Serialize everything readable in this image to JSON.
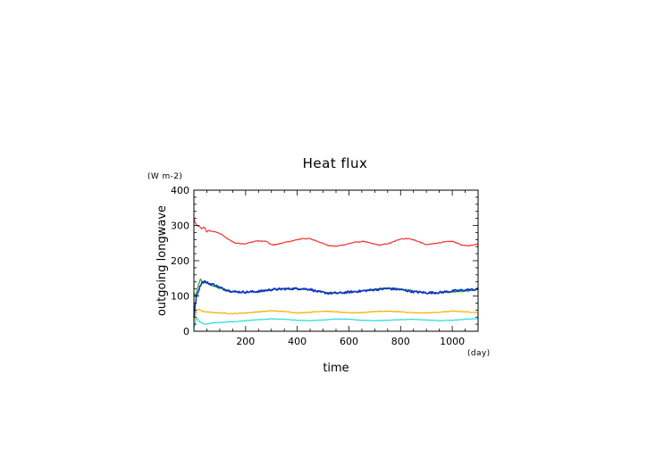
{
  "chart_data": {
    "type": "line",
    "title": "Heat flux",
    "xlabel": "time",
    "ylabel": "outgoing longwave",
    "x_unit": "(day)",
    "y_unit": "(W m-2)",
    "xlim": [
      0,
      1100
    ],
    "ylim": [
      0,
      400
    ],
    "x_ticks": [
      200,
      400,
      600,
      800,
      1000
    ],
    "y_ticks": [
      0,
      100,
      200,
      300,
      400
    ],
    "x_tick_labels": [
      "200",
      "400",
      "600",
      "800",
      "1000"
    ],
    "y_tick_labels": [
      "0",
      "100",
      "200",
      "300",
      "400"
    ],
    "grid": false,
    "legend": "none",
    "series": [
      {
        "color": "#ee3333",
        "x": [
          0,
          5,
          10,
          20,
          30,
          40,
          50,
          60,
          80,
          100,
          130,
          160,
          200,
          240,
          280,
          300,
          320,
          340,
          380,
          420,
          450,
          480,
          520,
          550,
          580,
          620,
          660,
          680,
          720,
          760,
          800,
          830,
          860,
          900,
          940,
          980,
          1000,
          1020,
          1040,
          1070,
          1100
        ],
        "y": [
          320,
          308,
          300,
          298,
          290,
          296,
          282,
          285,
          282,
          278,
          262,
          250,
          248,
          256,
          255,
          245,
          246,
          250,
          256,
          263,
          262,
          255,
          243,
          241,
          245,
          252,
          255,
          250,
          244,
          250,
          262,
          263,
          257,
          245,
          250,
          254,
          255,
          250,
          243,
          243,
          248
        ]
      },
      {
        "color": "#22aa22",
        "x": [
          0,
          5,
          15,
          25,
          35,
          45,
          60,
          80,
          100,
          150,
          200,
          250,
          300,
          350,
          400,
          450,
          500,
          550,
          600,
          650,
          700,
          750,
          800,
          850,
          900,
          950,
          1000,
          1050,
          1100
        ],
        "y": [
          110,
          100,
          125,
          148,
          135,
          140,
          132,
          128,
          122,
          112,
          110,
          112,
          118,
          120,
          122,
          118,
          110,
          108,
          110,
          114,
          118,
          122,
          120,
          114,
          108,
          108,
          112,
          114,
          118
        ]
      },
      {
        "color": "#1133cc",
        "x": [
          0,
          5,
          10,
          20,
          30,
          40,
          50,
          60,
          80,
          100,
          130,
          160,
          200,
          250,
          300,
          350,
          400,
          450,
          480,
          520,
          560,
          600,
          650,
          700,
          750,
          800,
          850,
          900,
          950,
          1000,
          1050,
          1100
        ],
        "y": [
          40,
          75,
          100,
          120,
          138,
          142,
          138,
          135,
          132,
          124,
          116,
          112,
          111,
          113,
          118,
          120,
          121,
          119,
          112,
          108,
          108,
          111,
          114,
          118,
          121,
          118,
          112,
          109,
          110,
          114,
          117,
          119
        ]
      },
      {
        "color": "#f0b000",
        "x": [
          0,
          5,
          10,
          20,
          30,
          40,
          60,
          100,
          150,
          200,
          250,
          300,
          350,
          400,
          450,
          500,
          550,
          600,
          650,
          700,
          750,
          800,
          850,
          900,
          950,
          1000,
          1050,
          1100
        ],
        "y": [
          30,
          40,
          60,
          62,
          58,
          55,
          54,
          52,
          50,
          52,
          55,
          58,
          56,
          52,
          54,
          57,
          55,
          52,
          53,
          56,
          57,
          55,
          52,
          52,
          54,
          57,
          55,
          53
        ]
      },
      {
        "color": "#22dddd",
        "x": [
          0,
          5,
          10,
          15,
          20,
          30,
          40,
          60,
          80,
          100,
          150,
          200,
          250,
          300,
          350,
          400,
          450,
          500,
          550,
          600,
          650,
          700,
          750,
          800,
          850,
          900,
          950,
          1000,
          1050,
          1100
        ],
        "y": [
          10,
          25,
          38,
          35,
          28,
          24,
          20,
          22,
          24,
          25,
          27,
          30,
          33,
          35,
          34,
          31,
          30,
          32,
          35,
          34,
          31,
          30,
          31,
          33,
          34,
          32,
          30,
          31,
          34,
          36
        ]
      }
    ]
  }
}
